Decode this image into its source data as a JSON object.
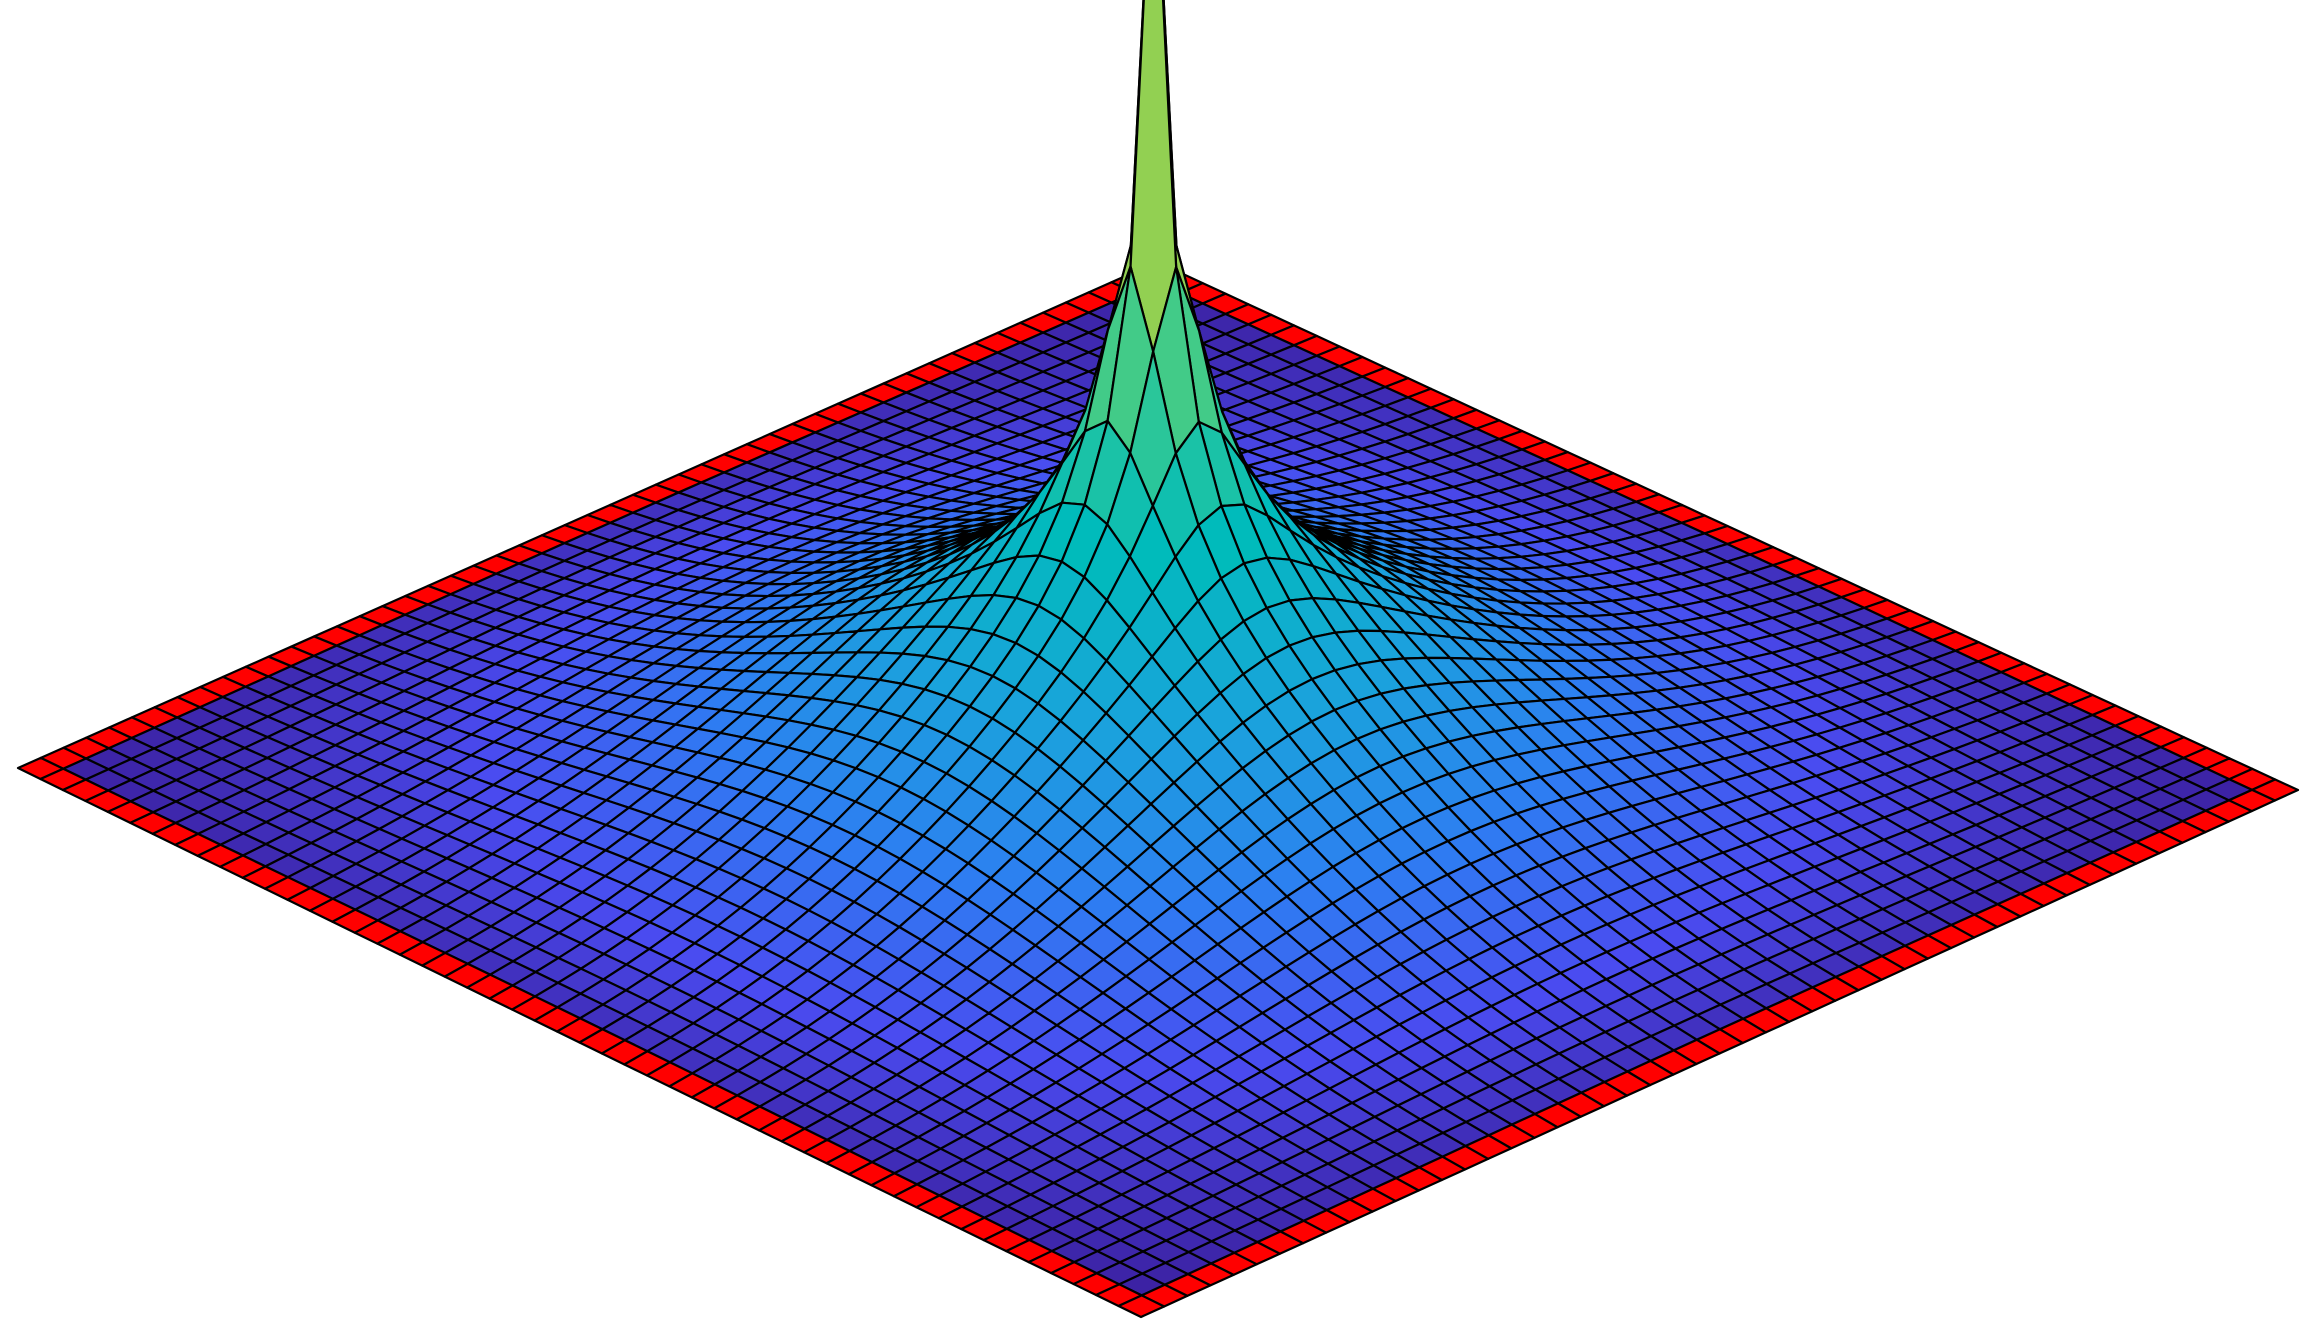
{
  "chart_data": {
    "type": "surface",
    "title": "",
    "xlabel": "",
    "ylabel": "",
    "zlabel": "",
    "axes_visible": false,
    "grid": false,
    "legend": "none",
    "colormap": [
      "#3b1f9e",
      "#4a4bf0",
      "#2e7df2",
      "#1aa3dc",
      "#00bbbb",
      "#3fcb8a",
      "#7fc95a",
      "#f5f52a",
      "#ffff00"
    ],
    "grid_size": 50,
    "x_range": [
      0,
      1
    ],
    "y_range": [
      0,
      1
    ],
    "z_range": [
      0,
      1
    ],
    "peak": {
      "x": 0.5,
      "y": 0.5,
      "z": 1.0
    },
    "boundary_cells": {
      "value": 0,
      "color": "#ff0000"
    },
    "edge_color": "#000000"
  }
}
